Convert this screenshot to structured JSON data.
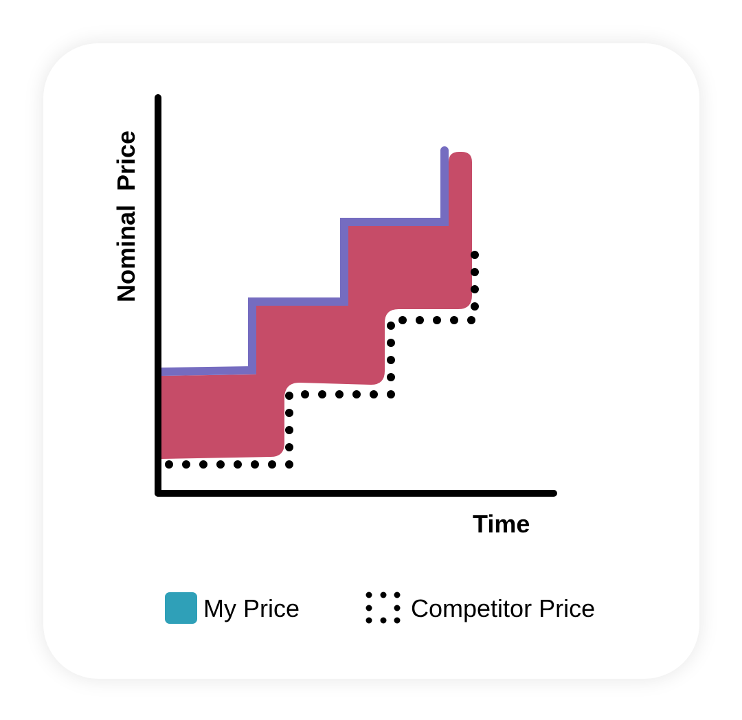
{
  "y_axis_label": "Nominal  Price",
  "x_axis_label": "Time",
  "legend": [
    {
      "label": "My Price",
      "color": "#2FA0B8",
      "style": "solid-swatch"
    },
    {
      "label": "Competitor Price",
      "color": "#000000",
      "style": "dotted"
    }
  ],
  "colors": {
    "gap_fill": "#C64C68",
    "my_price_line": "#756CC0",
    "competitor_line": "#000000",
    "axes": "#000000"
  }
}
